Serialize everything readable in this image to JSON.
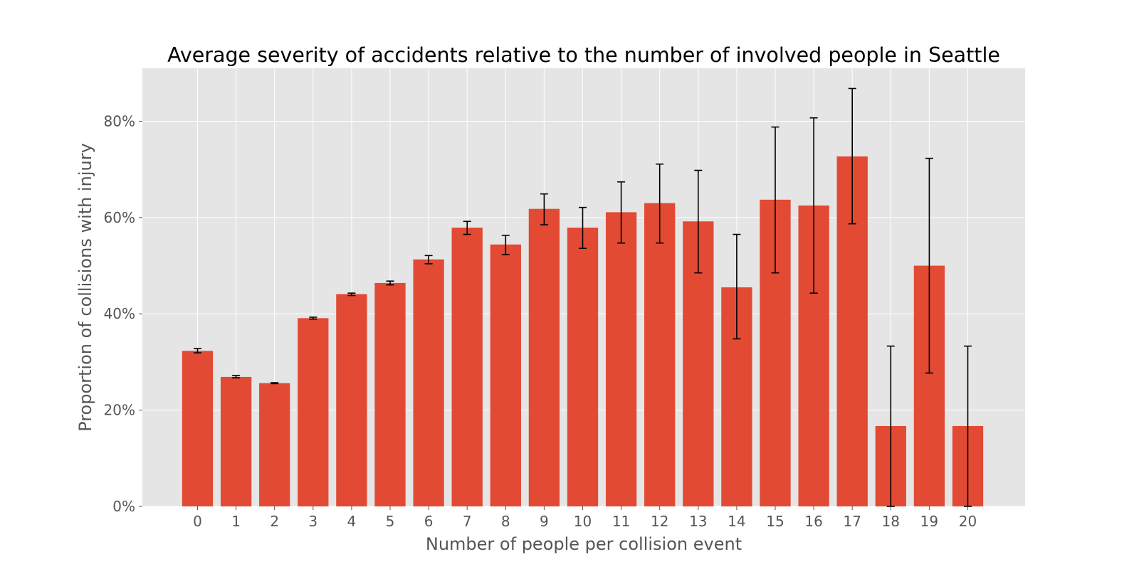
{
  "chart_data": {
    "type": "bar",
    "title": "Average severity of accidents relative to the number of involved people in Seattle",
    "xlabel": "Number of people per collision event",
    "ylabel": "Proportion of collisions with injury",
    "categories": [
      "0",
      "1",
      "2",
      "3",
      "4",
      "5",
      "6",
      "7",
      "8",
      "9",
      "10",
      "11",
      "12",
      "13",
      "14",
      "15",
      "16",
      "17",
      "18",
      "19",
      "20"
    ],
    "values": [
      0.323,
      0.269,
      0.256,
      0.391,
      0.441,
      0.464,
      0.513,
      0.579,
      0.544,
      0.618,
      0.579,
      0.611,
      0.63,
      0.592,
      0.455,
      0.637,
      0.625,
      0.727,
      0.167,
      0.5,
      0.167
    ],
    "error_low": [
      0.319,
      0.267,
      0.255,
      0.389,
      0.438,
      0.46,
      0.504,
      0.565,
      0.523,
      0.585,
      0.536,
      0.547,
      0.547,
      0.485,
      0.348,
      0.485,
      0.443,
      0.587,
      0.0,
      0.277,
      0.0
    ],
    "error_high": [
      0.328,
      0.272,
      0.257,
      0.393,
      0.443,
      0.468,
      0.521,
      0.592,
      0.563,
      0.649,
      0.621,
      0.674,
      0.711,
      0.698,
      0.565,
      0.788,
      0.807,
      0.868,
      0.333,
      0.723,
      0.333
    ],
    "ylim": [
      0,
      0.91
    ],
    "yticks": [
      0,
      0.2,
      0.4,
      0.6,
      0.8
    ],
    "ytick_labels": [
      "0%",
      "20%",
      "40%",
      "60%",
      "80%"
    ],
    "grid": true,
    "style": "ggplot",
    "colors": {
      "bar": "#e24a33",
      "plot_background": "#e5e5e5",
      "grid": "#ffffff",
      "error_bar": "#000000"
    }
  }
}
